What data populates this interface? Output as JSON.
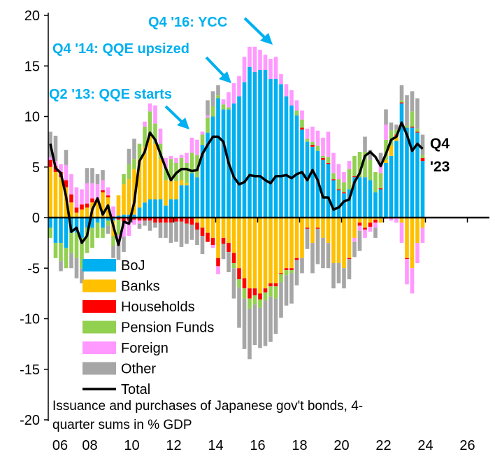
{
  "chart_data": {
    "type": "bar",
    "stacked": true,
    "title": "",
    "note_lines": [
      "Issuance and purchases of Japanese gov't bonds, 4-",
      "quarter sums in % GDP"
    ],
    "xlabel": "",
    "ylabel": "",
    "ylim": [
      -20,
      20
    ],
    "yticks": [
      20,
      15,
      10,
      5,
      0,
      -5,
      -10,
      -15,
      -20
    ],
    "xticks": [
      "06",
      "08",
      "10",
      "12",
      "14",
      "16",
      "18",
      "20",
      "22",
      "24",
      "26"
    ],
    "x_start": "2006 Q1",
    "x_end": "2023 Q4",
    "frequency": "quarterly",
    "legend_position": "bottom-left",
    "series": [
      {
        "name": "BoJ",
        "color": "#00B0F0",
        "values": [
          -1.0,
          -2.5,
          -2.5,
          -3.0,
          -1.5,
          -1.5,
          -2.0,
          -1.0,
          -1.0,
          -0.5,
          -1.0,
          -0.3,
          -0.3,
          0.2,
          0.3,
          0.3,
          0.3,
          1.0,
          1.5,
          1.8,
          1.8,
          1.8,
          1.2,
          1.8,
          1.8,
          3.2,
          3.2,
          4.4,
          4.0,
          7.2,
          8.4,
          10.0,
          11.8,
          10.7,
          10.7,
          11.3,
          12.0,
          13.4,
          14.9,
          14.4,
          14.6,
          14.6,
          13.7,
          13.7,
          13.2,
          12.0,
          11.1,
          10.1,
          8.7,
          7.5,
          7.0,
          6.6,
          5.7,
          5.3,
          3.7,
          2.7,
          2.4,
          2.8,
          4.0,
          4.0,
          4.0,
          3.7,
          2.5,
          2.8,
          5.4,
          6.1,
          7.6,
          11.3,
          8.9,
          8.9,
          8.4,
          5.6
        ]
      },
      {
        "name": "Banks",
        "color": "#FFC000",
        "values": [
          5.0,
          4.5,
          4.0,
          3.0,
          1.5,
          0.5,
          0.8,
          1.0,
          1.5,
          1.5,
          2.5,
          2.0,
          -1.5,
          2.0,
          3.0,
          3.5,
          4.5,
          4.8,
          5.5,
          6.2,
          5.5,
          4.0,
          2.5,
          2.0,
          1.8,
          0.5,
          0.2,
          0.0,
          -0.5,
          -1.0,
          -1.5,
          -2.0,
          -4.0,
          -2.0,
          -2.5,
          -3.5,
          -5.0,
          -6.0,
          -7.0,
          -7.0,
          -7.5,
          -7.0,
          -6.5,
          -6.5,
          -5.5,
          -5.0,
          -5.0,
          -4.0,
          -4.0,
          -1.0,
          -2.5,
          -1.0,
          -2.0,
          -2.5,
          -4.5,
          -4.5,
          -5.0,
          -4.0,
          -2.0,
          -0.5,
          -1.0,
          -0.5,
          -0.2,
          -0.5,
          0.3,
          1.0,
          0.5,
          -0.5,
          -4.0,
          -5.0,
          -2.5,
          -1.0
        ]
      },
      {
        "name": "Households",
        "color": "#FF0000",
        "values": [
          0.7,
          0.6,
          0.5,
          0.7,
          0.8,
          0.5,
          0.5,
          0.4,
          0.4,
          0.3,
          0.2,
          0.2,
          0.1,
          -0.2,
          -0.4,
          -0.3,
          -0.2,
          -0.3,
          -0.3,
          -0.3,
          -0.5,
          -0.5,
          -0.5,
          -0.5,
          -0.4,
          -0.4,
          -0.6,
          -0.7,
          -0.7,
          -0.8,
          -0.9,
          -0.7,
          -0.8,
          -0.6,
          -0.9,
          -1.0,
          -1.1,
          -1.0,
          -1.0,
          -0.7,
          -0.6,
          -0.4,
          -0.3,
          -0.3,
          -0.1,
          -0.2,
          -0.2,
          -0.2,
          0.2,
          -0.1,
          0.2,
          -0.1,
          0.2,
          0.1,
          0.1,
          0.1,
          0.1,
          -0.1,
          0.1,
          -0.3,
          -0.2,
          -0.4,
          -0.3,
          0.1,
          -0.1,
          -0.1,
          0.1,
          0.1,
          -0.1,
          0.1,
          0.1,
          0.3
        ]
      },
      {
        "name": "Pension Funds",
        "color": "#92D050",
        "values": [
          -1.0,
          -1.5,
          -1.8,
          -2.0,
          -2.0,
          -2.5,
          -3.0,
          -2.5,
          -2.0,
          -1.5,
          -1.0,
          -0.5,
          -1.0,
          -1.5,
          1.0,
          1.5,
          1.0,
          1.5,
          2.0,
          2.5,
          2.0,
          1.5,
          1.2,
          2.0,
          1.8,
          2.2,
          2.0,
          2.0,
          2.2,
          1.0,
          1.5,
          1.0,
          0.3,
          0.5,
          0.2,
          -0.5,
          -0.8,
          -1.0,
          -1.0,
          -0.9,
          -0.8,
          -0.8,
          -1.0,
          -1.2,
          -0.8,
          -0.5,
          -0.3,
          0.5,
          0.8,
          0.3,
          0.3,
          0.5,
          0.2,
          0.6,
          0.6,
          1.0,
          1.0,
          2.0,
          2.0,
          2.5,
          2.5,
          2.0,
          2.0,
          1.5,
          2.0,
          1.5,
          0.5,
          0.2,
          0.2,
          1.5,
          0.3,
          0.3
        ]
      },
      {
        "name": "Foreign",
        "color": "#FF99FF",
        "values": [
          0.3,
          0.5,
          0.8,
          1.5,
          2.0,
          2.0,
          1.5,
          2.0,
          1.5,
          1.5,
          1.0,
          0.8,
          1.0,
          -1.0,
          -1.5,
          -1.5,
          -0.5,
          -0.3,
          0.5,
          0.8,
          1.8,
          1.5,
          1.0,
          0.3,
          0.5,
          0.3,
          1.0,
          1.5,
          1.5,
          0.3,
          0.2,
          -0.3,
          -0.8,
          0.5,
          1.5,
          2.0,
          2.0,
          2.5,
          2.0,
          2.5,
          2.0,
          1.5,
          2.0,
          2.2,
          1.0,
          1.2,
          1.5,
          1.0,
          0.9,
          1.0,
          1.5,
          1.5,
          1.8,
          2.5,
          2.0,
          1.5,
          1.0,
          0.8,
          -0.4,
          -0.5,
          -0.8,
          -0.5,
          -0.5,
          1.0,
          1.5,
          -0.2,
          -0.5,
          -2.0,
          -2.5,
          -2.5,
          -2.0,
          -1.5
        ]
      },
      {
        "name": "Other",
        "color": "#A6A6A6",
        "values": [
          2.5,
          2.5,
          -1.0,
          1.5,
          -1.5,
          -2.0,
          -1.5,
          1.5,
          1.5,
          1.0,
          1.0,
          -0.8,
          -1.2,
          -1.5,
          -1.5,
          1.5,
          2.0,
          -0.5,
          -0.5,
          -1.0,
          -0.5,
          -1.5,
          -1.5,
          -2.0,
          -2.0,
          -2.5,
          -2.0,
          -1.5,
          -1.5,
          -1.8,
          1.5,
          1.5,
          1.0,
          -1.5,
          -2.0,
          -3.0,
          -4.0,
          -5.0,
          -5.0,
          -4.0,
          -4.0,
          -4.5,
          -4.5,
          -3.5,
          -3.5,
          -3.0,
          -3.0,
          -2.5,
          -1.5,
          -2.0,
          -3.0,
          -3.5,
          -3.0,
          -2.5,
          -2.5,
          -2.0,
          -2.0,
          -2.0,
          -1.5,
          -2.0,
          1.5,
          1.0,
          -1.0,
          1.0,
          1.5,
          0.8,
          0.5,
          1.5,
          3.0,
          2.0,
          3.0,
          2.0
        ]
      }
    ],
    "line": {
      "name": "Total",
      "color": "#000000",
      "values": [
        7.3,
        4.9,
        4.4,
        2.1,
        -1.4,
        -1.0,
        -2.5,
        -1.8,
        0.8,
        1.9,
        0.3,
        1.2,
        -0.8,
        -2.7,
        -0.4,
        -0.6,
        1.5,
        5.6,
        6.5,
        8.4,
        7.7,
        6.3,
        4.9,
        3.7,
        4.4,
        4.8,
        4.8,
        4.6,
        4.7,
        6.3,
        7.2,
        8.0,
        8.0,
        7.5,
        5.4,
        4.0,
        3.3,
        3.5,
        4.2,
        4.1,
        4.1,
        3.7,
        3.4,
        4.1,
        4.1,
        4.2,
        3.9,
        4.3,
        4.5,
        3.7,
        4.7,
        3.7,
        2.0,
        2.0,
        0.8,
        1.0,
        1.6,
        1.8,
        3.5,
        4.4,
        6.1,
        6.5,
        6.0,
        5.1,
        6.3,
        7.7,
        8.0,
        9.4,
        8.2,
        6.6,
        7.3,
        6.8
      ]
    },
    "annotations": [
      {
        "text": "Q4 '16: YCC",
        "color": "#00B0F0"
      },
      {
        "text": "Q4 '14: QQE upsized",
        "color": "#00B0F0"
      },
      {
        "text": "Q2 '13: QQE starts",
        "color": "#00B0F0"
      },
      {
        "text": "Q4",
        "color": "#000000"
      },
      {
        "text": "'23",
        "color": "#000000"
      }
    ]
  }
}
